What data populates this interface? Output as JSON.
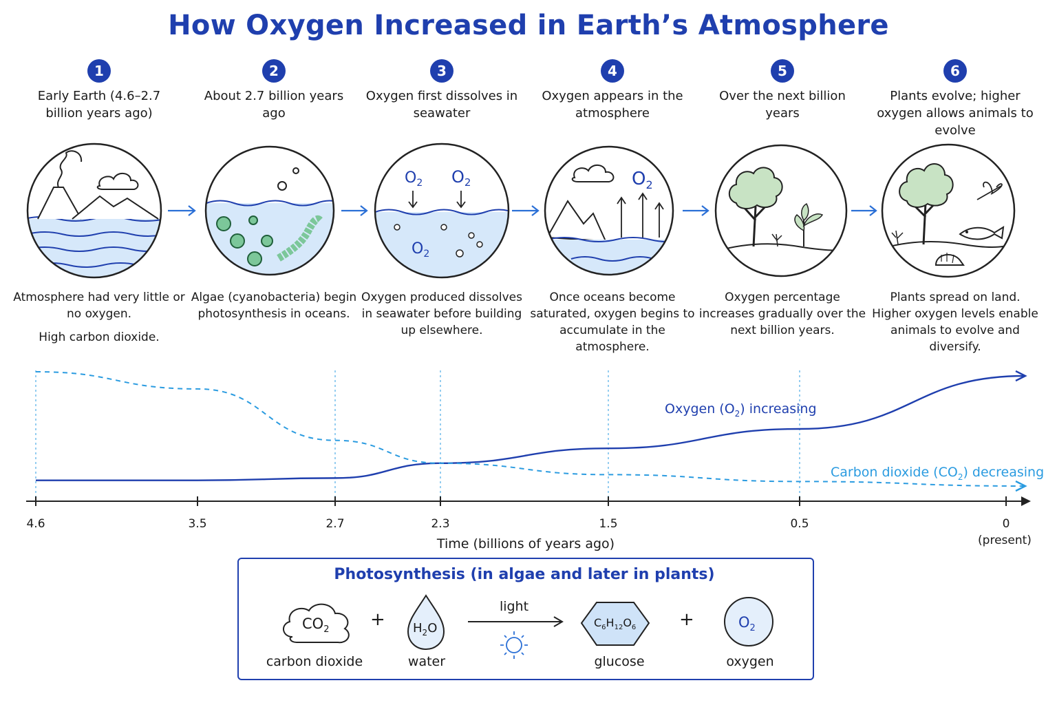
{
  "title": "How Oxygen Increased in Earth’s Atmosphere",
  "steps": [
    {
      "number": "1",
      "heading": "Early Earth (4.6–2.7 billion years ago)",
      "desc1": "Atmosphere had very little or no oxygen.",
      "desc2": "High carbon dioxide."
    },
    {
      "number": "2",
      "heading": "About 2.7 billion years ago",
      "desc1": "Algae (cyanobacteria) begin photosynthesis in oceans.",
      "desc2": ""
    },
    {
      "number": "3",
      "heading": "Oxygen first dissolves in seawater",
      "desc1": "Oxygen produced dissolves in seawater before building up elsewhere.",
      "desc2": ""
    },
    {
      "number": "4",
      "heading": "Oxygen appears in the atmosphere",
      "desc1": "Once oceans become saturated, oxygen begins to accumulate in the atmosphere.",
      "desc2": ""
    },
    {
      "number": "5",
      "heading": "Over the next billion years",
      "desc1": "Oxygen percentage increases gradually over the next billion years.",
      "desc2": ""
    },
    {
      "number": "6",
      "heading": "Plants evolve; higher oxygen allows animals to evolve",
      "desc1": "Plants spread on land. Higher oxygen levels enable animals to evolve and diversify.",
      "desc2": ""
    }
  ],
  "icon_labels": {
    "o2": "O",
    "o2_sub": "2"
  },
  "chart_data": {
    "type": "line",
    "xlabel": "Time (billions of years ago)",
    "x_ticks": [
      "4.6",
      "3.5",
      "2.7",
      "2.3",
      "1.5",
      "0.5",
      "0"
    ],
    "x_tick_present": "(present)",
    "x": [
      4.6,
      3.5,
      2.7,
      2.3,
      1.5,
      0.5,
      0
    ],
    "series": [
      {
        "name": "Oxygen (O₂) increasing",
        "label_main": "Oxygen (O",
        "label_sub": "2",
        "label_end": ") increasing",
        "style": "solid",
        "color": "#1f3fae",
        "values": [
          0.05,
          0.05,
          0.07,
          0.2,
          0.33,
          0.5,
          1.0
        ]
      },
      {
        "name": "Carbon dioxide (CO₂) decreasing",
        "label_main": "Carbon dioxide (CO",
        "label_sub": "2",
        "label_end": ") decreasing",
        "style": "dashed",
        "color": "#2a9be0",
        "values": [
          1.0,
          0.85,
          0.4,
          0.2,
          0.1,
          0.04,
          0.0
        ]
      }
    ],
    "ylim": [
      0,
      1
    ],
    "grid": false
  },
  "photosynthesis": {
    "title": "Photosynthesis (in algae and later in plants)",
    "plus": "+",
    "light": "light",
    "co2": {
      "main": "CO",
      "sub": "2",
      "label": "carbon dioxide"
    },
    "h2o": {
      "h": "H",
      "sub": "2",
      "o": "O",
      "label": "water"
    },
    "glucose": {
      "c": "C",
      "c_sub": "6",
      "h": "H",
      "h_sub": "12",
      "o": "O",
      "o_sub": "6",
      "label": "glucose"
    },
    "o2": {
      "main": "O",
      "sub": "2",
      "label": "oxygen"
    }
  },
  "colors": {
    "primary": "#1f3fae",
    "secondary": "#2a9be0",
    "water": "#d6e8fa",
    "algae": "#7cc79a",
    "plant": "#c8e3c4"
  }
}
